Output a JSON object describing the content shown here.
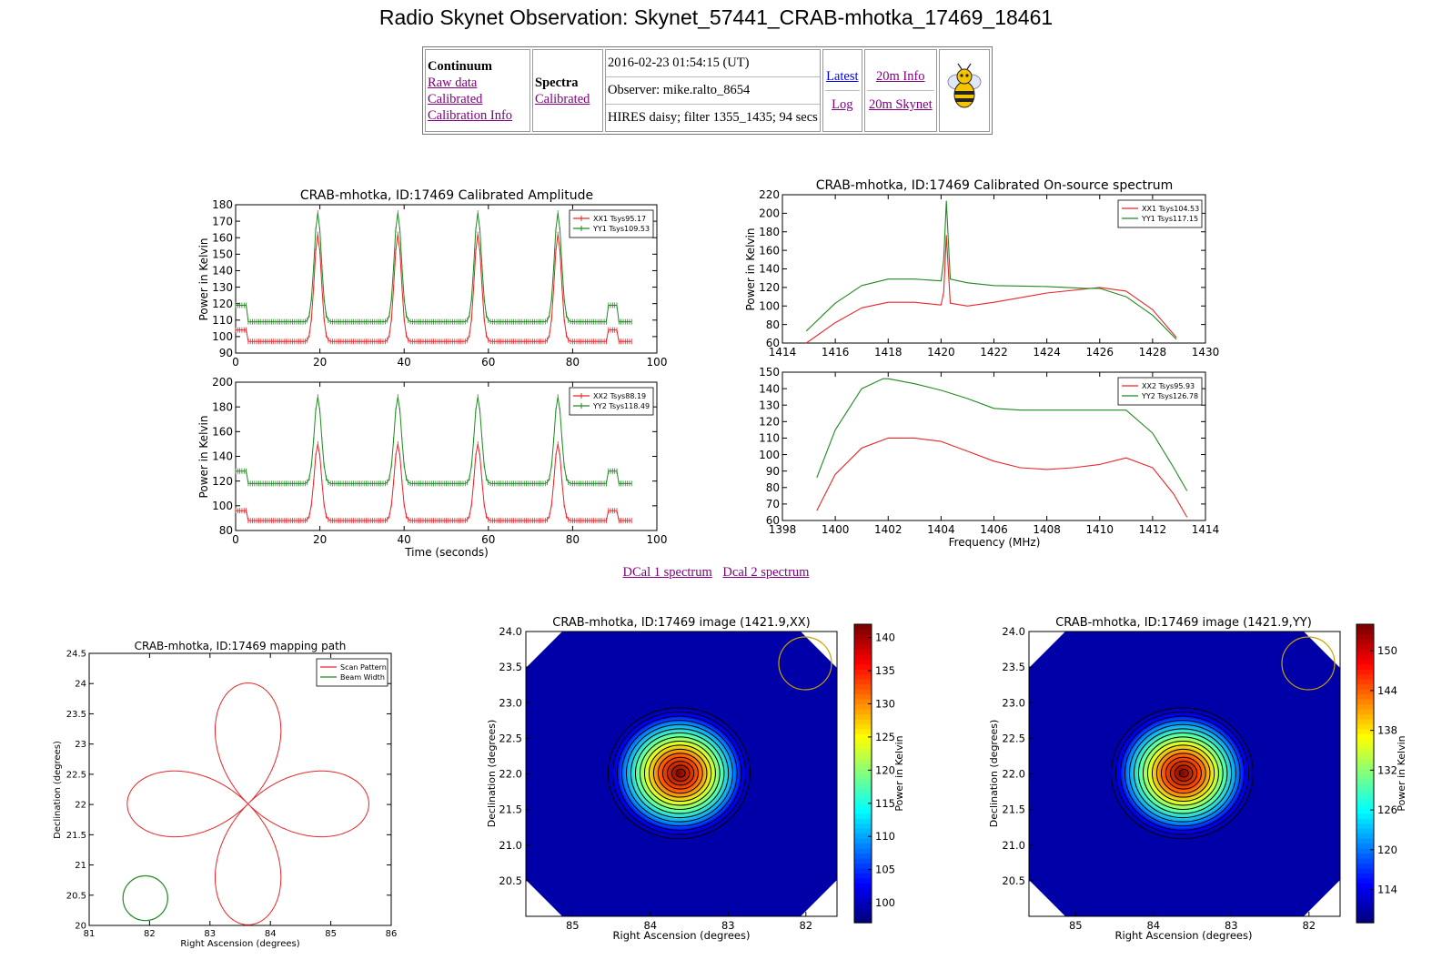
{
  "page": {
    "title": "Radio Skynet Observation: Skynet_57441_CRAB-mhotka_17469_18461"
  },
  "info_table": {
    "continuum": {
      "heading": "Continuum",
      "links": [
        "Raw data ",
        "Calibrated ",
        "Calibration Info "
      ]
    },
    "spectra": {
      "heading": "Spectra",
      "links": [
        "Calibrated "
      ]
    },
    "meta": [
      "2016-02-23 01:54:15 (UT)",
      "Observer: mike.ralto_8654",
      "HIRES daisy; filter 1355_1435; 94 secs"
    ],
    "nav_left": [
      "Latest",
      "Log"
    ],
    "nav_right": [
      "20m Info",
      "20m Skynet"
    ],
    "logo_icon": "bee-icon"
  },
  "links_row": [
    "DCal 1 spectrum",
    "Dcal 2 spectrum"
  ],
  "colors": {
    "xx": "#e8262a",
    "yy": "#1f8a1f",
    "link": "#800080",
    "beam": "#c8a400"
  },
  "chart_data": [
    {
      "id": "amplitude",
      "type": "line",
      "title": "CRAB-mhotka, ID:17469 Calibrated Amplitude",
      "xlabel": "Time (seconds)",
      "panels": [
        {
          "ylabel": "Power in Kelvin",
          "xlim": [
            0,
            100
          ],
          "ylim": [
            90,
            180
          ],
          "xticks": [
            0,
            20,
            40,
            60,
            80,
            100
          ],
          "yticks": [
            90,
            100,
            110,
            120,
            130,
            140,
            150,
            160,
            170,
            180
          ],
          "legend": "top-right",
          "series": [
            {
              "name": "XX1 Tsys95.17",
              "color": "#e8262a",
              "baseline_initial": 104,
              "baseline": 97,
              "peaks": [
                {
                  "t": 19.5,
                  "v": 162
                },
                {
                  "t": 38.5,
                  "v": 162
                },
                {
                  "t": 57.5,
                  "v": 162
                },
                {
                  "t": 76.5,
                  "v": 162
                },
                {
                  "t": 89.5,
                  "v": 104
                }
              ],
              "t_end": 94
            },
            {
              "name": "YY1 Tsys109.53",
              "color": "#1f8a1f",
              "baseline_initial": 119,
              "baseline": 109,
              "peaks": [
                {
                  "t": 19.5,
                  "v": 175
                },
                {
                  "t": 38.5,
                  "v": 175
                },
                {
                  "t": 57.5,
                  "v": 175
                },
                {
                  "t": 76.5,
                  "v": 175
                },
                {
                  "t": 89.5,
                  "v": 119
                }
              ],
              "t_end": 94
            }
          ]
        },
        {
          "ylabel": "Power in Kelvin",
          "xlim": [
            0,
            100
          ],
          "ylim": [
            80,
            200
          ],
          "xticks": [
            0,
            20,
            40,
            60,
            80,
            100
          ],
          "yticks": [
            80,
            100,
            120,
            140,
            160,
            180,
            200
          ],
          "legend": "top-right",
          "series": [
            {
              "name": "XX2 Tsys88.19",
              "color": "#e8262a",
              "baseline_initial": 96,
              "baseline": 88,
              "peaks": [
                {
                  "t": 19.5,
                  "v": 150
                },
                {
                  "t": 38.5,
                  "v": 150
                },
                {
                  "t": 57.5,
                  "v": 150
                },
                {
                  "t": 76.5,
                  "v": 150
                },
                {
                  "t": 89.5,
                  "v": 96
                }
              ],
              "t_end": 94
            },
            {
              "name": "YY2 Tsys118.49",
              "color": "#1f8a1f",
              "baseline_initial": 128,
              "baseline": 118,
              "peaks": [
                {
                  "t": 19.5,
                  "v": 188
                },
                {
                  "t": 38.5,
                  "v": 188
                },
                {
                  "t": 57.5,
                  "v": 188
                },
                {
                  "t": 76.5,
                  "v": 188
                },
                {
                  "t": 89.5,
                  "v": 128
                }
              ],
              "t_end": 94
            }
          ]
        }
      ]
    },
    {
      "id": "spectrum",
      "type": "line",
      "title": "CRAB-mhotka, ID:17469 Calibrated On-source spectrum",
      "xlabel": "Frequency (MHz)",
      "panels": [
        {
          "ylabel": "Power in Kelvin",
          "xlim": [
            1414,
            1430
          ],
          "ylim": [
            60,
            220
          ],
          "xticks": [
            1414,
            1416,
            1418,
            1420,
            1422,
            1424,
            1426,
            1428,
            1430
          ],
          "yticks": [
            60,
            80,
            100,
            120,
            140,
            160,
            180,
            200,
            220
          ],
          "legend": "top-right",
          "series": [
            {
              "name": "XX1 Tsys104.53",
              "color": "#e8262a",
              "x": [
                1414.9,
                1416,
                1417,
                1418,
                1419,
                1420,
                1420.1,
                1420.2,
                1420.35,
                1421,
                1422,
                1424,
                1426,
                1427,
                1428,
                1428.9
              ],
              "y": [
                60,
                82,
                98,
                104,
                104,
                101,
                115,
                176,
                103,
                100,
                104,
                114,
                120,
                116,
                96,
                66
              ]
            },
            {
              "name": "YY1 Tsys117.15",
              "color": "#1f8a1f",
              "x": [
                1414.9,
                1416,
                1417,
                1418,
                1419,
                1420,
                1420.1,
                1420.2,
                1420.35,
                1421,
                1422,
                1424,
                1425.5,
                1426,
                1427,
                1428,
                1428.9
              ],
              "y": [
                73,
                103,
                122,
                129,
                129,
                127,
                150,
                213,
                129,
                125,
                122,
                121,
                119,
                119,
                110,
                90,
                64
              ]
            }
          ]
        },
        {
          "ylabel": "",
          "xlim": [
            1398,
            1414
          ],
          "ylim": [
            60,
            150
          ],
          "xticks": [
            1398,
            1400,
            1402,
            1404,
            1406,
            1408,
            1410,
            1412,
            1414
          ],
          "yticks": [
            60,
            70,
            80,
            90,
            100,
            110,
            120,
            130,
            140,
            150
          ],
          "legend": "top-right",
          "series": [
            {
              "name": "XX2 Tsys95.93",
              "color": "#e8262a",
              "x": [
                1399.3,
                1400,
                1401,
                1402,
                1403,
                1404,
                1405,
                1406,
                1407,
                1408,
                1409,
                1410,
                1411,
                1412,
                1412.8,
                1413.3
              ],
              "y": [
                66,
                88,
                104,
                110,
                110,
                108,
                102,
                96,
                92,
                91,
                92,
                94,
                98,
                92,
                76,
                62
              ]
            },
            {
              "name": "YY2 Tsys126.78",
              "color": "#1f8a1f",
              "x": [
                1399.3,
                1400,
                1401,
                1401.8,
                1402,
                1403,
                1404,
                1405,
                1406,
                1407,
                1408,
                1409,
                1410,
                1411,
                1412,
                1412.8,
                1413.3
              ],
              "y": [
                86,
                115,
                140,
                146,
                146,
                143,
                139,
                134,
                128,
                127,
                127,
                127,
                127,
                127,
                113,
                92,
                78
              ]
            }
          ]
        }
      ]
    },
    {
      "id": "mapping-path",
      "type": "line",
      "title": "CRAB-mhotka, ID:17469 mapping path",
      "xlabel": "Right Ascension (degrees)",
      "ylabel": "Declination (degrees)",
      "xlim": [
        81,
        86
      ],
      "ylim": [
        20.0,
        24.5
      ],
      "xticks": [
        81,
        82,
        83,
        84,
        85,
        86
      ],
      "yticks": [
        20.0,
        20.5,
        21.0,
        21.5,
        22.0,
        22.5,
        23.0,
        23.5,
        24.0,
        24.5
      ],
      "legend": "top-right",
      "center": [
        83.63,
        22.01
      ],
      "petal_radius": 2.0,
      "beam_center": [
        81.93,
        20.45
      ],
      "beam_radius": 0.37,
      "series": [
        {
          "name": "Scan Pattern",
          "color": "#e8262a"
        },
        {
          "name": "Beam Width",
          "color": "#1f8a1f"
        }
      ]
    },
    {
      "id": "image-xx",
      "type": "heatmap",
      "title": "CRAB-mhotka, ID:17469 image (1421.9,XX)",
      "xlabel": "Right Ascension (degrees)",
      "ylabel": "Declination (degrees)",
      "xticks": [
        85,
        84,
        83,
        82
      ],
      "yticks": [
        20.5,
        21.0,
        21.5,
        22.0,
        22.5,
        23.0,
        23.5,
        24.0
      ],
      "xlim": [
        85.6,
        81.6
      ],
      "ylim": [
        20.0,
        24.0
      ],
      "peak": [
        83.63,
        22.01
      ],
      "colorbar": {
        "label": "Power in Kelvin",
        "min": 97,
        "max": 142,
        "ticks": [
          100,
          105,
          110,
          115,
          120,
          125,
          130,
          135,
          140
        ]
      },
      "beam_icon": "beam-circle"
    },
    {
      "id": "image-yy",
      "type": "heatmap",
      "title": "CRAB-mhotka, ID:17469 image (1421.9,YY)",
      "xlabel": "Right Ascension (degrees)",
      "ylabel": "Declination (degrees)",
      "xticks": [
        85,
        84,
        83,
        82
      ],
      "yticks": [
        20.5,
        21.0,
        21.5,
        22.0,
        22.5,
        23.0,
        23.5,
        24.0
      ],
      "xlim": [
        85.6,
        81.6
      ],
      "ylim": [
        20.0,
        24.0
      ],
      "peak": [
        83.63,
        22.01
      ],
      "colorbar": {
        "label": "Power in Kelvin",
        "min": 109,
        "max": 154,
        "ticks": [
          114,
          120,
          126,
          132,
          138,
          144,
          150
        ]
      },
      "beam_icon": "beam-circle"
    }
  ]
}
